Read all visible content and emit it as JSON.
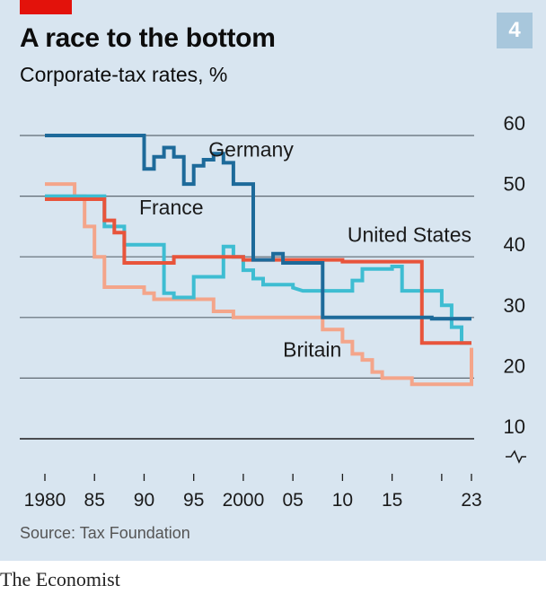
{
  "header": {
    "title": "A race to the bottom",
    "subtitle": "Corporate-tax rates, %",
    "chart_number": "4"
  },
  "footer": {
    "source": "Source: Tax Foundation",
    "brand": "The Economist"
  },
  "colors": {
    "background": "#d8e5f0",
    "grid": "#5f6a73",
    "accent_red": "#e3120b",
    "badge": "#a8c7dc"
  },
  "chart_data": {
    "type": "line",
    "title": "A race to the bottom",
    "subtitle": "Corporate-tax rates, %",
    "xlabel": "",
    "ylabel": "",
    "xlim": [
      1980,
      2023
    ],
    "ylim": [
      10,
      60
    ],
    "y_ticks": [
      10,
      20,
      30,
      40,
      50,
      60
    ],
    "x_ticks": [
      {
        "value": 1980,
        "label": "1980"
      },
      {
        "value": 1985,
        "label": "85"
      },
      {
        "value": 1990,
        "label": "90"
      },
      {
        "value": 1995,
        "label": "95"
      },
      {
        "value": 2000,
        "label": "2000"
      },
      {
        "value": 2005,
        "label": "05"
      },
      {
        "value": 2010,
        "label": "10"
      },
      {
        "value": 2015,
        "label": "15"
      },
      {
        "value": 2020,
        "label": ""
      },
      {
        "value": 2023,
        "label": "23"
      }
    ],
    "axis_break": true,
    "grid": true,
    "step": true,
    "series": [
      {
        "name": "Germany",
        "color": "#1d6a9a",
        "label_at": [
          1996.5,
          56.5
        ],
        "points": [
          [
            1980,
            60
          ],
          [
            1990,
            60
          ],
          [
            1990,
            54.5
          ],
          [
            1991,
            54.5
          ],
          [
            1991,
            56.5
          ],
          [
            1992,
            56.5
          ],
          [
            1992,
            58
          ],
          [
            1993,
            58
          ],
          [
            1993,
            56.5
          ],
          [
            1994,
            56.5
          ],
          [
            1994,
            52
          ],
          [
            1995,
            52
          ],
          [
            1995,
            55
          ],
          [
            1996,
            55
          ],
          [
            1996,
            56
          ],
          [
            1997,
            56
          ],
          [
            1997,
            57
          ],
          [
            1998,
            57
          ],
          [
            1998,
            55.5
          ],
          [
            1999,
            55.5
          ],
          [
            1999,
            52
          ],
          [
            2001,
            52
          ],
          [
            2001,
            39.5
          ],
          [
            2003,
            39.5
          ],
          [
            2003,
            40.5
          ],
          [
            2004,
            40.5
          ],
          [
            2004,
            39
          ],
          [
            2008,
            39
          ],
          [
            2008,
            30
          ],
          [
            2019,
            30
          ],
          [
            2019,
            29.8
          ],
          [
            2023,
            29.8
          ]
        ]
      },
      {
        "name": "United States",
        "color": "#e8543b",
        "label_at": [
          2010.5,
          42.5
        ],
        "points": [
          [
            1980,
            49.5
          ],
          [
            1986,
            49.5
          ],
          [
            1986,
            46
          ],
          [
            1987,
            46
          ],
          [
            1987,
            44
          ],
          [
            1988,
            44
          ],
          [
            1988,
            39
          ],
          [
            1993,
            39
          ],
          [
            1993,
            40
          ],
          [
            2000,
            40
          ],
          [
            2000,
            39.5
          ],
          [
            2010,
            39.5
          ],
          [
            2010,
            39.2
          ],
          [
            2018,
            39.2
          ],
          [
            2018,
            25.8
          ],
          [
            2023,
            25.8
          ]
        ]
      },
      {
        "name": "France",
        "color": "#3ebdd2",
        "label_at": [
          1989.5,
          47
        ],
        "points": [
          [
            1980,
            50
          ],
          [
            1986,
            50
          ],
          [
            1986,
            45
          ],
          [
            1988,
            45
          ],
          [
            1988,
            42
          ],
          [
            1992,
            42
          ],
          [
            1992,
            34
          ],
          [
            1993,
            34
          ],
          [
            1993,
            33.3
          ],
          [
            1995,
            33.3
          ],
          [
            1995,
            36.7
          ],
          [
            1998,
            36.7
          ],
          [
            1998,
            41.7
          ],
          [
            1999,
            41.7
          ],
          [
            1999,
            40
          ],
          [
            2000,
            40
          ],
          [
            2000,
            37.8
          ],
          [
            2001,
            37.8
          ],
          [
            2001,
            36.4
          ],
          [
            2002,
            36.4
          ],
          [
            2002,
            35.4
          ],
          [
            2005,
            35.4
          ],
          [
            2005,
            34.9
          ],
          [
            2006,
            34.4
          ],
          [
            2011,
            34.4
          ],
          [
            2011,
            36.1
          ],
          [
            2012,
            36.1
          ],
          [
            2012,
            38
          ],
          [
            2015,
            38
          ],
          [
            2015,
            38.4
          ],
          [
            2016,
            38.4
          ],
          [
            2016,
            34.4
          ],
          [
            2019,
            34.4
          ],
          [
            2019,
            34.4
          ],
          [
            2020,
            34.4
          ],
          [
            2020,
            32
          ],
          [
            2021,
            32
          ],
          [
            2021,
            28.4
          ],
          [
            2022,
            28.4
          ],
          [
            2022,
            25.8
          ],
          [
            2023,
            25.8
          ]
        ]
      },
      {
        "name": "Britain",
        "color": "#f4a58a",
        "label_at": [
          2004,
          23.5
        ],
        "points": [
          [
            1980,
            52
          ],
          [
            1983,
            52
          ],
          [
            1983,
            50
          ],
          [
            1984,
            50
          ],
          [
            1984,
            45
          ],
          [
            1985,
            45
          ],
          [
            1985,
            40
          ],
          [
            1986,
            40
          ],
          [
            1986,
            35
          ],
          [
            1990,
            35
          ],
          [
            1990,
            34
          ],
          [
            1991,
            34
          ],
          [
            1991,
            33
          ],
          [
            1997,
            33
          ],
          [
            1997,
            31
          ],
          [
            1999,
            31
          ],
          [
            1999,
            30
          ],
          [
            2008,
            30
          ],
          [
            2008,
            28
          ],
          [
            2010,
            28
          ],
          [
            2010,
            26
          ],
          [
            2011,
            26
          ],
          [
            2011,
            24
          ],
          [
            2012,
            24
          ],
          [
            2012,
            23
          ],
          [
            2013,
            23
          ],
          [
            2013,
            21
          ],
          [
            2014,
            21
          ],
          [
            2014,
            20
          ],
          [
            2017,
            20
          ],
          [
            2017,
            19
          ],
          [
            2023,
            19
          ],
          [
            2023,
            25
          ]
        ]
      }
    ]
  }
}
